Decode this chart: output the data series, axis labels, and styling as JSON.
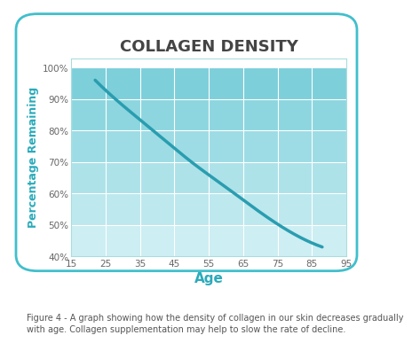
{
  "title": "COLLAGEN DENSITY",
  "xlabel": "Age",
  "ylabel": "Percentage Remaining",
  "x_ticks": [
    15,
    25,
    35,
    45,
    55,
    65,
    75,
    85,
    95
  ],
  "y_ticks": [
    40,
    50,
    60,
    70,
    80,
    90,
    100
  ],
  "y_tick_labels": [
    "40%",
    "50%",
    "60%",
    "70%",
    "80%",
    "90%",
    "100%"
  ],
  "xlim": [
    15,
    95
  ],
  "ylim": [
    40,
    103
  ],
  "curve_x": [
    22,
    30,
    40,
    50,
    60,
    70,
    80,
    88
  ],
  "curve_y": [
    96,
    88,
    79,
    70,
    62,
    54,
    47,
    43
  ],
  "line_color": "#2a9db0",
  "line_width": 2.5,
  "band_palette": [
    "#cdeef3",
    "#bde8ee",
    "#ade2e9",
    "#9ddce4",
    "#8dd6df",
    "#7dcfda"
  ],
  "y_band_boundaries": [
    40,
    50,
    60,
    70,
    80,
    90,
    100
  ],
  "title_color": "#444444",
  "axis_label_color": "#2aabbb",
  "tick_label_color": "#666666",
  "background_color": "#ffffff",
  "border_color": "#40bfcc",
  "title_fontsize": 13,
  "xlabel_fontsize": 11,
  "ylabel_fontsize": 9,
  "tick_fontsize": 7.5,
  "caption": "Figure 4 - A graph showing how the density of collagen in our skin decreases gradually\nwith age. Collagen supplementation may help to slow the rate of decline.",
  "caption_fontsize": 7.0,
  "caption_color": "#555555"
}
